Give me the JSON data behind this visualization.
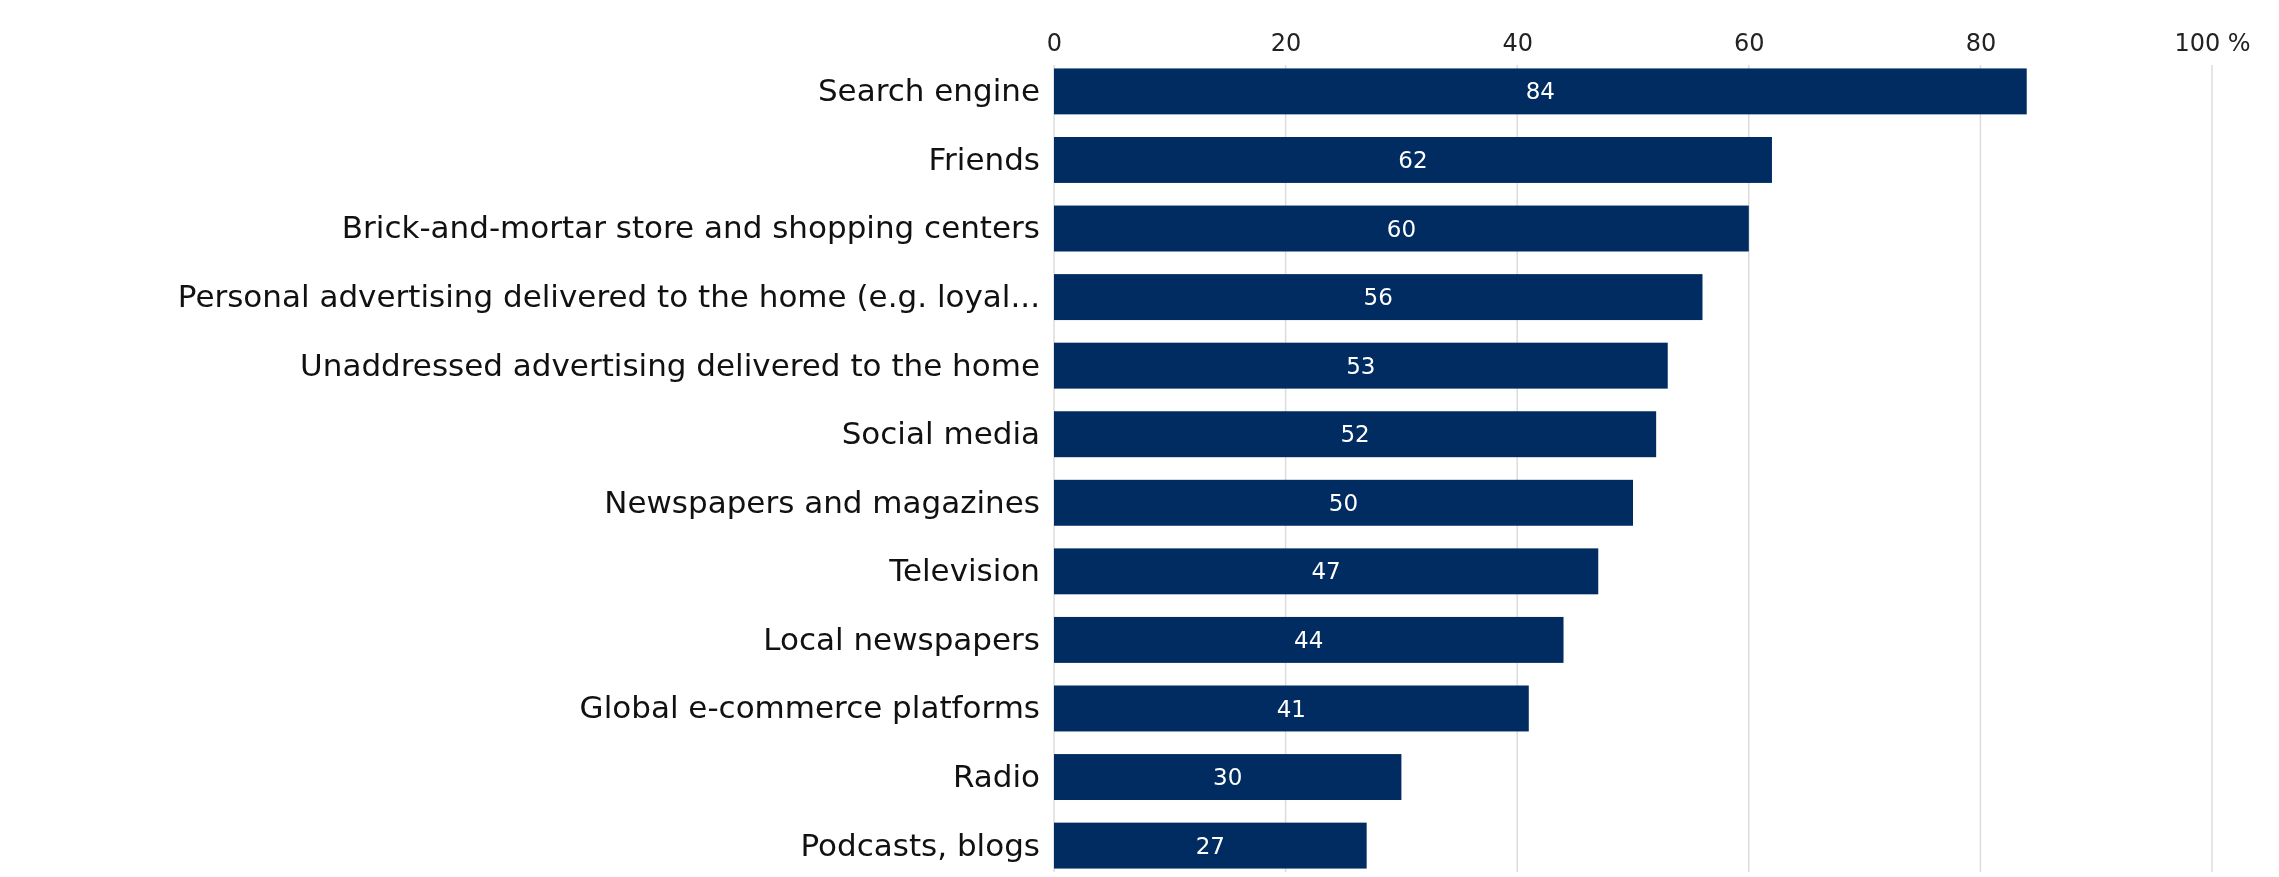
{
  "chart_data": {
    "type": "bar",
    "orientation": "horizontal",
    "categories": [
      "Search engine",
      "Friends",
      "Brick-and-mortar store and shopping centers",
      "Personal advertising delivered to the home (e.g. loyal...",
      "Unaddressed advertising delivered to the home",
      "Social media",
      "Newspapers and magazines",
      "Television",
      "Local newspapers",
      "Global e-commerce platforms",
      "Radio",
      "Podcasts, blogs"
    ],
    "values": [
      84,
      62,
      60,
      56,
      53,
      52,
      50,
      47,
      44,
      41,
      30,
      27
    ],
    "color": "#002c61",
    "xlim": [
      0,
      100
    ],
    "xticks": [
      0,
      20,
      40,
      60,
      80,
      {
        "value": 100,
        "label": "100 %"
      }
    ],
    "grid": "x",
    "data_labels": true
  }
}
